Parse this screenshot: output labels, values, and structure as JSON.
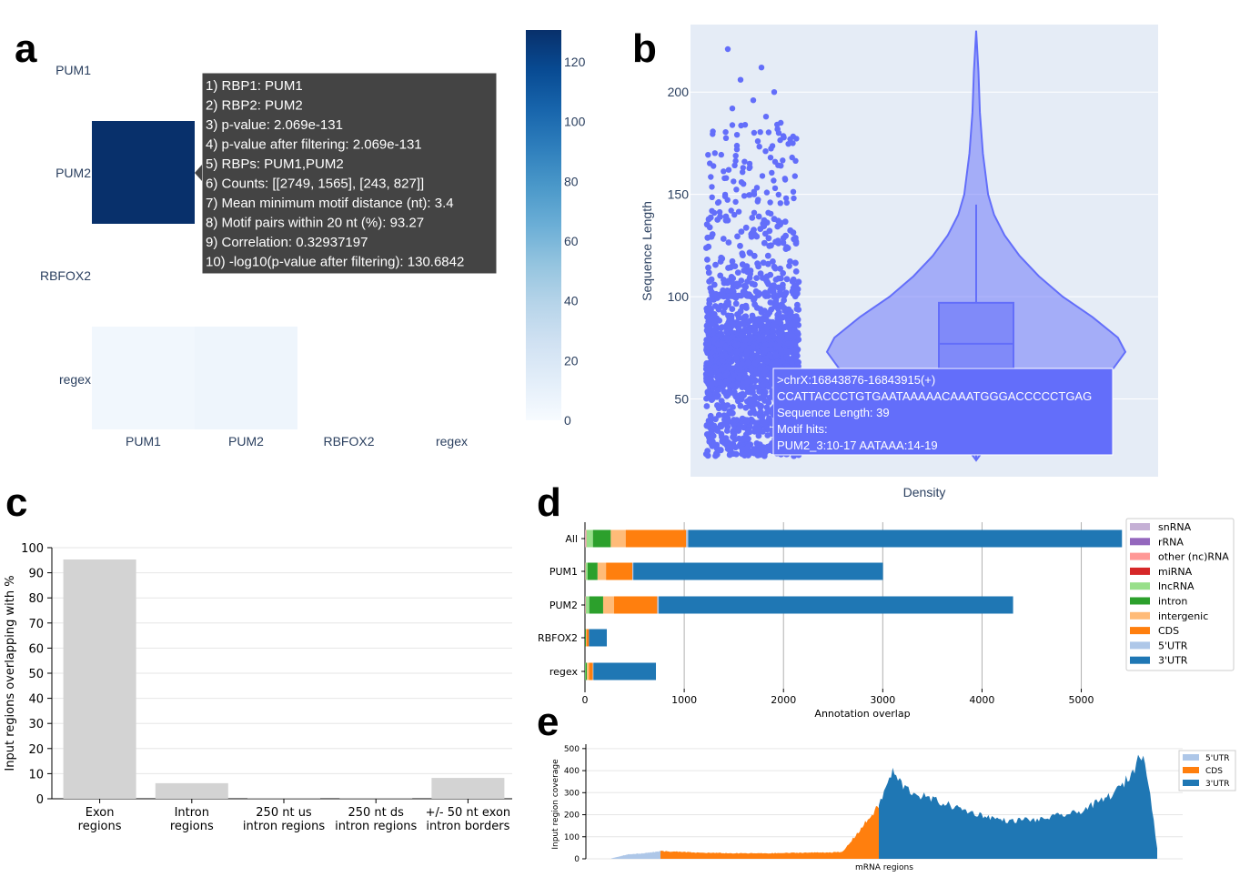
{
  "panels": {
    "a": "a",
    "b": "b",
    "c": "c",
    "d": "d",
    "e": "e"
  },
  "colors": {
    "heat_max": "#08306b",
    "heat_min": "#f7fbff",
    "violin": "#636efa",
    "grey_bar": "#d3d3d3",
    "utr5": "#aec7e8",
    "cds": "#ff7f0e",
    "utr3": "#1f77b4"
  },
  "tooltip_a": {
    "lines": [
      "1) RBP1: PUM1",
      "2) RBP2: PUM2",
      "3) p-value: 2.069e-131",
      "4) p-value after filtering: 2.069e-131",
      "5) RBPs: PUM1,PUM2",
      "6) Counts: [[2749, 1565], [243, 827]]",
      "7) Mean minimum motif distance (nt): 3.4",
      "8) Motif pairs within 20 nt (%): 93.27",
      "9) Correlation: 0.32937197",
      "10) -log10(p-value after filtering): 130.6842"
    ]
  },
  "tooltip_b": {
    "lines": [
      ">chrX:16843876-16843915(+)",
      "CCATTACCCTGTGAATAAAAACAAATGGGACCCCCTGAG",
      "Sequence Length: 39",
      "Motif hits:",
      "PUM2_3:10-17 AATAAA:14-19"
    ]
  },
  "chart_data": [
    {
      "panel": "a",
      "type": "heatmap",
      "x_labels": [
        "PUM1",
        "PUM2",
        "RBFOX2",
        "regex"
      ],
      "y_labels": [
        "PUM1",
        "PUM2",
        "RBFOX2",
        "regex"
      ],
      "cells": [
        {
          "row": "PUM2",
          "col": "PUM1",
          "value": 130.68
        },
        {
          "row": "regex",
          "col": "PUM1",
          "value": 4
        },
        {
          "row": "regex",
          "col": "PUM2",
          "value": 6
        }
      ],
      "colorbar": {
        "ticks": [
          0,
          20,
          40,
          60,
          80,
          100,
          120
        ],
        "range": [
          0,
          130.68
        ]
      }
    },
    {
      "panel": "b",
      "type": "scatter",
      "subtype": "violin",
      "xlabel": "Density",
      "ylabel": "Sequence Length",
      "yticks": [
        50,
        100,
        150,
        200
      ],
      "ylim": [
        12,
        233
      ],
      "distribution": {
        "min": 20,
        "max": 230,
        "q1": 65,
        "median": 77,
        "q3": 97,
        "upper_fence": 145,
        "mode": 73
      },
      "outliers": [
        221,
        212,
        206,
        200,
        196,
        192,
        188,
        184,
        180,
        176,
        172,
        168,
        165,
        162,
        159,
        156,
        153,
        150
      ]
    },
    {
      "panel": "c",
      "type": "bar",
      "categories": [
        "Exon\nregions",
        "Intron\nregions",
        "250 nt us\nintron regions",
        "250 nt ds\nintron regions",
        "+/- 50 nt exon\nintron borders"
      ],
      "values": [
        95.3,
        6.2,
        0.1,
        0.1,
        8.3
      ],
      "ylabel": "Input regions overlapping with %",
      "ylim": [
        0,
        100
      ],
      "yticks": [
        0,
        10,
        20,
        30,
        40,
        50,
        60,
        70,
        80,
        90,
        100
      ]
    },
    {
      "panel": "d",
      "type": "bar",
      "orientation": "horizontal",
      "stacked": true,
      "categories": [
        "All",
        "PUM1",
        "PUM2",
        "RBFOX2",
        "regex"
      ],
      "xlabel": "Annotation overlap",
      "xlim": [
        0,
        5600
      ],
      "xticks": [
        0,
        1000,
        2000,
        3000,
        4000,
        5000
      ],
      "legend": "right",
      "series": [
        {
          "name": "snRNA",
          "color": "#c5b0d5",
          "values": [
            5,
            2,
            3,
            0,
            0
          ]
        },
        {
          "name": "rRNA",
          "color": "#9467bd",
          "values": [
            0,
            0,
            0,
            0,
            0
          ]
        },
        {
          "name": "other (nc)RNA",
          "color": "#ff9896",
          "values": [
            10,
            5,
            5,
            0,
            0
          ]
        },
        {
          "name": "miRNA",
          "color": "#d62728",
          "values": [
            0,
            0,
            0,
            0,
            0
          ]
        },
        {
          "name": "lncRNA",
          "color": "#98df8a",
          "values": [
            65,
            20,
            35,
            2,
            5
          ]
        },
        {
          "name": "intron",
          "color": "#2ca02c",
          "values": [
            180,
            100,
            140,
            8,
            15
          ]
        },
        {
          "name": "intergenic",
          "color": "#ffbb78",
          "values": [
            150,
            85,
            110,
            5,
            20
          ]
        },
        {
          "name": "CDS",
          "color": "#ff7f0e",
          "values": [
            610,
            265,
            435,
            25,
            40
          ]
        },
        {
          "name": "5'UTR",
          "color": "#aec7e8",
          "values": [
            20,
            10,
            15,
            0,
            5
          ]
        },
        {
          "name": "3'UTR",
          "color": "#1f77b4",
          "values": [
            4370,
            2515,
            3570,
            180,
            630
          ]
        }
      ]
    },
    {
      "panel": "e",
      "type": "area",
      "xlabel": "mRNA regions",
      "ylabel": "Input region coverage",
      "ylim": [
        0,
        520
      ],
      "yticks": [
        0,
        100,
        200,
        300,
        400,
        500
      ],
      "legend": "top-right",
      "series": [
        {
          "name": "5'UTR",
          "color": "#aec7e8",
          "segment": [
            0,
            0.09
          ],
          "levels": [
            2,
            20,
            25,
            35
          ]
        },
        {
          "name": "CDS",
          "color": "#ff7f0e",
          "segment": [
            0.09,
            0.49
          ],
          "levels": [
            35,
            28,
            25,
            25,
            28,
            30,
            240
          ]
        },
        {
          "name": "3'UTR",
          "color": "#1f77b4",
          "segment": [
            0.49,
            1.0
          ],
          "levels": [
            240,
            395,
            320,
            290,
            270,
            250,
            230,
            210,
            195,
            180,
            170,
            180,
            175,
            190,
            200,
            210,
            240,
            270,
            310,
            380,
            500,
            50
          ]
        }
      ]
    }
  ]
}
